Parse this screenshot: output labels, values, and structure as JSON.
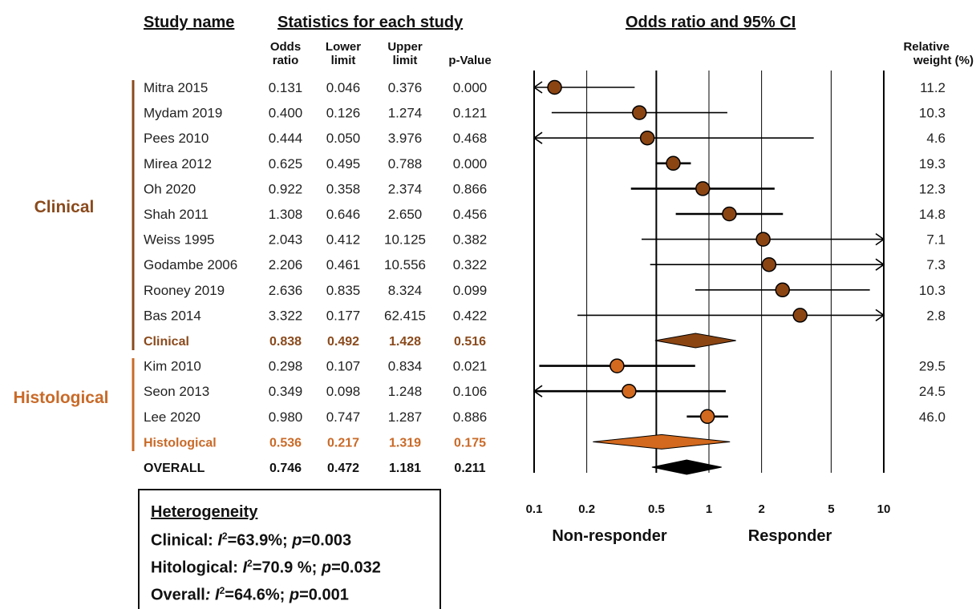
{
  "headers": {
    "study_name": "Study name",
    "stats": "Statistics for each study",
    "ci": "Odds ratio and 95% CI",
    "odds_ratio": [
      "Odds",
      "ratio"
    ],
    "lower": [
      "Lower",
      "limit"
    ],
    "upper": [
      "Upper",
      "limit"
    ],
    "pvalue": "p-Value",
    "weight": [
      "Relative",
      "weight (%)"
    ]
  },
  "groups": [
    {
      "label": "Clinical",
      "color": "#8a4a1c"
    },
    {
      "label": "Histological",
      "color": "#c96a28"
    }
  ],
  "colors": {
    "clinical_marker": "#8b4513",
    "histological_marker": "#d2691e",
    "overall_marker": "#000000",
    "clinical_text": "#8a4a1c",
    "histological_text": "#c96a28"
  },
  "chart_data": {
    "type": "forest",
    "x_scale": "log",
    "xlim": [
      0.1,
      10
    ],
    "x_ticks": [
      "0.1",
      "0.2",
      "0.5",
      "1",
      "2",
      "5",
      "10"
    ],
    "x_tick_values": [
      0.1,
      0.2,
      0.5,
      1,
      2,
      5,
      10
    ],
    "xlabel_left": "Non-responder",
    "xlabel_right": "Responder",
    "rows": [
      {
        "study": "Mitra 2015",
        "or": "0.131",
        "lower": "0.046",
        "upper": "0.376",
        "p": "0.000",
        "weight": "11.2",
        "kind": "study",
        "group": "clinical"
      },
      {
        "study": "Mydam 2019",
        "or": "0.400",
        "lower": "0.126",
        "upper": "1.274",
        "p": "0.121",
        "weight": "10.3",
        "kind": "study",
        "group": "clinical"
      },
      {
        "study": "Pees 2010",
        "or": "0.444",
        "lower": "0.050",
        "upper": "3.976",
        "p": "0.468",
        "weight": "4.6",
        "kind": "study",
        "group": "clinical"
      },
      {
        "study": "Mirea 2012",
        "or": "0.625",
        "lower": "0.495",
        "upper": "0.788",
        "p": "0.000",
        "weight": "19.3",
        "kind": "study",
        "group": "clinical"
      },
      {
        "study": "Oh 2020",
        "or": "0.922",
        "lower": "0.358",
        "upper": "2.374",
        "p": "0.866",
        "weight": "12.3",
        "kind": "study",
        "group": "clinical"
      },
      {
        "study": "Shah 2011",
        "or": "1.308",
        "lower": "0.646",
        "upper": "2.650",
        "p": "0.456",
        "weight": "14.8",
        "kind": "study",
        "group": "clinical"
      },
      {
        "study": "Weiss 1995",
        "or": "2.043",
        "lower": "0.412",
        "upper": "10.125",
        "p": "0.382",
        "weight": "7.1",
        "kind": "study",
        "group": "clinical"
      },
      {
        "study": "Godambe 2006",
        "or": "2.206",
        "lower": "0.461",
        "upper": "10.556",
        "p": "0.322",
        "weight": "7.3",
        "kind": "study",
        "group": "clinical"
      },
      {
        "study": "Rooney 2019",
        "or": "2.636",
        "lower": "0.835",
        "upper": "8.324",
        "p": "0.099",
        "weight": "10.3",
        "kind": "study",
        "group": "clinical"
      },
      {
        "study": "Bas 2014",
        "or": "3.322",
        "lower": "0.177",
        "upper": "62.415",
        "p": "0.422",
        "weight": "2.8",
        "kind": "study",
        "group": "clinical"
      },
      {
        "study": "Clinical",
        "or": "0.838",
        "lower": "0.492",
        "upper": "1.428",
        "p": "0.516",
        "weight": "",
        "kind": "summary",
        "group": "clinical"
      },
      {
        "study": "Kim 2010",
        "or": "0.298",
        "lower": "0.107",
        "upper": "0.834",
        "p": "0.021",
        "weight": "29.5",
        "kind": "study",
        "group": "histological"
      },
      {
        "study": "Seon 2013",
        "or": "0.349",
        "lower": "0.098",
        "upper": "1.248",
        "p": "0.106",
        "weight": "24.5",
        "kind": "study",
        "group": "histological"
      },
      {
        "study": "Lee 2020",
        "or": "0.980",
        "lower": "0.747",
        "upper": "1.287",
        "p": "0.886",
        "weight": "46.0",
        "kind": "study",
        "group": "histological"
      },
      {
        "study": "Histological",
        "or": "0.536",
        "lower": "0.217",
        "upper": "1.319",
        "p": "0.175",
        "weight": "",
        "kind": "summary",
        "group": "histological"
      },
      {
        "study": "OVERALL",
        "or": "0.746",
        "lower": "0.472",
        "upper": "1.181",
        "p": "0.211",
        "weight": "",
        "kind": "overall",
        "group": "overall"
      }
    ]
  },
  "heterogeneity": {
    "title": "Heterogeneity",
    "lines": [
      {
        "label": "Clinical: ",
        "stat": "=63.9%; ",
        "p": "=0.003"
      },
      {
        "label": "Hitological: ",
        "stat": "=70.9 %; ",
        "p": "=0.032"
      },
      {
        "label": "Overall",
        "stat": "=64.6%; ",
        "p": "=0.001"
      }
    ]
  }
}
